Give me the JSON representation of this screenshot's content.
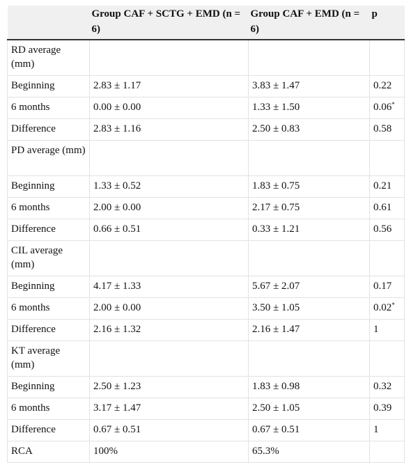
{
  "table": {
    "header": [
      "",
      "Group CAF + SCTG + EMD (n = 6)",
      "Group CAF + EMD (n = 6)",
      "p"
    ],
    "rows": [
      {
        "cells": [
          "RD average (mm)",
          "",
          "",
          ""
        ]
      },
      {
        "cells": [
          "Beginning",
          "2.83 ± 1.17",
          "3.83 ± 1.47",
          "0.22"
        ]
      },
      {
        "cells": [
          "6 months",
          "0.00 ± 0.00",
          "1.33 ± 1.50",
          "0.06"
        ],
        "sup": "*"
      },
      {
        "cells": [
          "Difference",
          "2.83 ± 1.16",
          "2.50 ± 0.83",
          "0.58"
        ]
      },
      {
        "cells": [
          "PD average (mm)",
          "",
          "",
          ""
        ]
      },
      {
        "cells": [
          "Beginning",
          "1.33 ± 0.52",
          "1.83 ± 0.75",
          "0.21"
        ]
      },
      {
        "cells": [
          "6 months",
          "2.00 ± 0.00",
          "2.17 ± 0.75",
          "0.61"
        ]
      },
      {
        "cells": [
          "Difference",
          "0.66 ± 0.51",
          "0.33 ± 1.21",
          "0.56"
        ]
      },
      {
        "cells": [
          "CIL average (mm)",
          "",
          "",
          ""
        ]
      },
      {
        "cells": [
          "Beginning",
          "4.17 ± 1.33",
          "5.67 ± 2.07",
          "0.17"
        ]
      },
      {
        "cells": [
          "6 months",
          "2.00 ± 0.00",
          "3.50 ± 1.05",
          "0.02"
        ],
        "sup": "*"
      },
      {
        "cells": [
          "Difference",
          "2.16 ± 1.32",
          "2.16 ± 1.47",
          "1"
        ]
      },
      {
        "cells": [
          "KT average (mm)",
          "",
          "",
          ""
        ]
      },
      {
        "cells": [
          "Beginning",
          "2.50 ± 1.23",
          "1.83 ± 0.98",
          "0.32"
        ]
      },
      {
        "cells": [
          "6 months",
          "3.17 ± 1.47",
          "2.50 ± 1.05",
          "0.39"
        ]
      },
      {
        "cells": [
          "Difference",
          "0.67 ± 0.51",
          "0.67 ± 0.51",
          "1"
        ]
      },
      {
        "cells": [
          "RCA",
          "100%",
          "65.3%",
          ""
        ]
      }
    ]
  }
}
